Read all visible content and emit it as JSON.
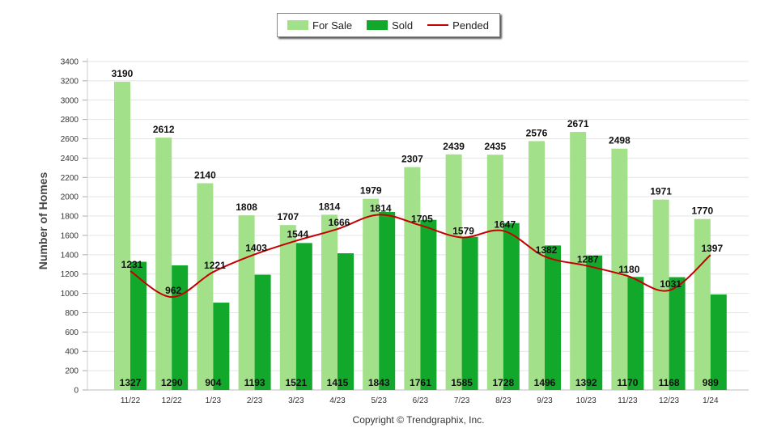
{
  "colors": {
    "for_sale": "#a3e08a",
    "sold": "#12a82b",
    "pended": "#c40000",
    "grid": "#e4e4e4"
  },
  "legend": {
    "for_sale": "For Sale",
    "sold": "Sold",
    "pended": "Pended"
  },
  "copyright": "Copyright © Trendgraphix, Inc.",
  "chart_data": {
    "type": "bar",
    "ylabel": "Number of Homes",
    "ylim": [
      0,
      3400
    ],
    "yticks": [
      0,
      200,
      400,
      600,
      800,
      1000,
      1200,
      1400,
      1600,
      1800,
      2000,
      2200,
      2400,
      2600,
      2800,
      3000,
      3200,
      3400
    ],
    "grid": true,
    "legend_position": "top-center",
    "categories": [
      "11/22",
      "12/22",
      "1/23",
      "2/23",
      "3/23",
      "4/23",
      "5/23",
      "6/23",
      "7/23",
      "8/23",
      "9/23",
      "10/23",
      "11/23",
      "12/23",
      "1/24"
    ],
    "series": [
      {
        "name": "For Sale",
        "type": "bar",
        "values": [
          3190,
          2612,
          2140,
          1808,
          1707,
          1814,
          1979,
          2307,
          2439,
          2435,
          2576,
          2671,
          2498,
          1971,
          1770
        ]
      },
      {
        "name": "Sold",
        "type": "bar",
        "values": [
          1327,
          1290,
          904,
          1193,
          1521,
          1415,
          1843,
          1761,
          1585,
          1728,
          1496,
          1392,
          1170,
          1168,
          989
        ]
      },
      {
        "name": "Pended",
        "type": "line",
        "values": [
          1231,
          962,
          1221,
          1403,
          1544,
          1666,
          1814,
          1705,
          1579,
          1647,
          1382,
          1287,
          1180,
          1031,
          1397
        ]
      }
    ]
  }
}
